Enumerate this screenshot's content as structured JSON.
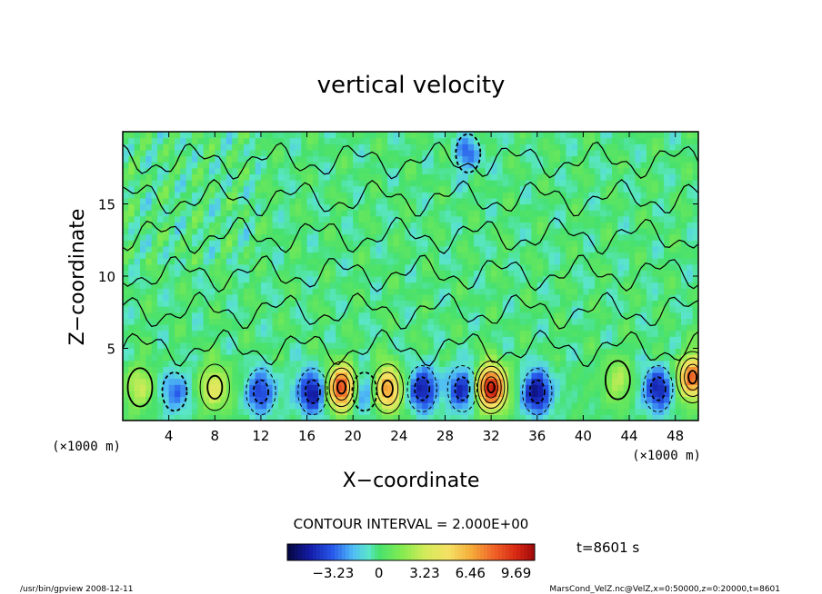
{
  "chart_data": {
    "type": "heatmap",
    "title": "vertical velocity",
    "xlabel": "X−coordinate",
    "ylabel": "Z−coordinate",
    "x_unit": "(×1000 m)",
    "y_unit": "(×1000 m)",
    "xlim": [
      0,
      50
    ],
    "ylim": [
      0,
      20
    ],
    "x_ticks": [
      "4",
      "8",
      "12",
      "16",
      "20",
      "24",
      "28",
      "32",
      "36",
      "40",
      "44",
      "48"
    ],
    "x_tick_values": [
      4,
      8,
      12,
      16,
      20,
      24,
      28,
      32,
      36,
      40,
      44,
      48
    ],
    "y_ticks": [
      "5",
      "10",
      "15"
    ],
    "y_tick_values": [
      5,
      10,
      15
    ],
    "contour_interval": "CONTOUR INTERVAL = 2.000E+00",
    "time_label": "t=8601 s",
    "colorbar_ticks": [
      "−3.23",
      "0",
      "3.23",
      "6.46",
      "9.69"
    ],
    "colorbar_tick_values": [
      -3.23,
      0,
      3.23,
      6.46,
      9.69
    ],
    "colorbar_range": [
      -6.46,
      11.0
    ],
    "updrafts": [
      {
        "x": 1.5,
        "z": 2.3,
        "w": 3.0
      },
      {
        "x": 8.0,
        "z": 2.3,
        "w": 4.0
      },
      {
        "x": 19.0,
        "z": 2.3,
        "w": 9.5
      },
      {
        "x": 23.0,
        "z": 2.2,
        "w": 7.5
      },
      {
        "x": 32.0,
        "z": 2.3,
        "w": 10.5
      },
      {
        "x": 43.0,
        "z": 2.8,
        "w": 2.5
      },
      {
        "x": 49.5,
        "z": 3.0,
        "w": 8.0
      }
    ],
    "downdrafts": [
      {
        "x": 4.5,
        "z": 2.0,
        "w": -3.0
      },
      {
        "x": 12.0,
        "z": 2.0,
        "w": -4.0
      },
      {
        "x": 16.5,
        "z": 2.0,
        "w": -5.5
      },
      {
        "x": 21.0,
        "z": 2.0,
        "w": -3.5
      },
      {
        "x": 26.0,
        "z": 2.2,
        "w": -5.0
      },
      {
        "x": 29.5,
        "z": 2.2,
        "w": -4.5
      },
      {
        "x": 36.0,
        "z": 2.0,
        "w": -5.5
      },
      {
        "x": 46.5,
        "z": 2.2,
        "w": -5.0
      },
      {
        "x": 30.0,
        "z": 18.5,
        "w": -2.5
      }
    ],
    "grid": false,
    "legend": "colorbar-bottom"
  },
  "footer": {
    "left": "/usr/bin/gpview   2008-12-11",
    "right": "MarsCond_VelZ.nc@VelZ,x=0:50000,z=0:20000,t=8601"
  },
  "colors": {
    "neg_strong": "#0a0a8c",
    "neg": "#3a6ee8",
    "neg_weak": "#6fd0f0",
    "zero": "#46e07a",
    "pos_weak": "#c8e85a",
    "pos": "#f0c040",
    "pos_strong": "#e03010"
  }
}
